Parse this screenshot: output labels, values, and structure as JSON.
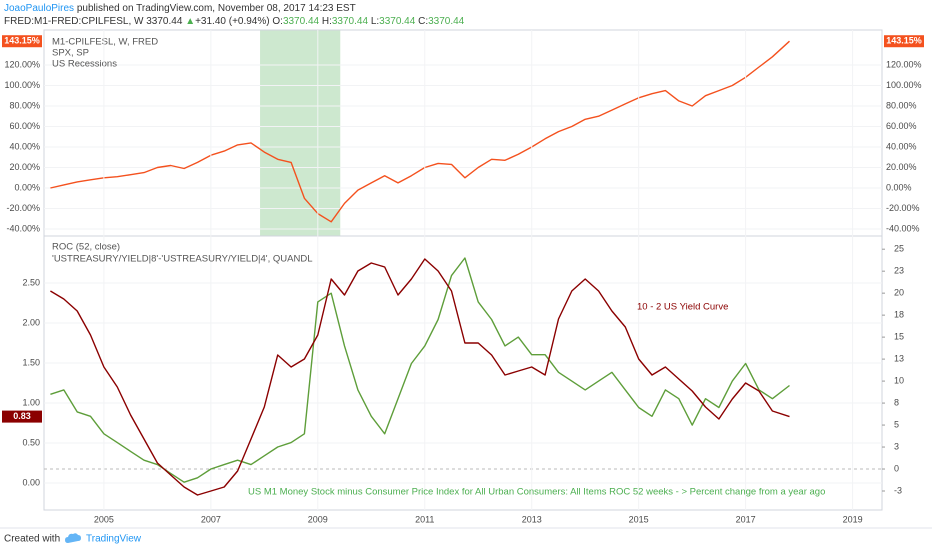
{
  "header": {
    "author": "JoaoPauloPires",
    "published": "published on TradingView.com, November 08, 2017 14:23 EST",
    "symbol": "FRED:M1-FRED:CPILFESL, W",
    "price": "3370.44",
    "arrow": "▲",
    "change": "+31.40 (+0.94%)",
    "ohlc": [
      {
        "label": "O:",
        "value": "3370.44"
      },
      {
        "label": "H:",
        "value": "3370.44"
      },
      {
        "label": "L:",
        "value": "3370.44"
      },
      {
        "label": "C:",
        "value": "3370.44"
      }
    ]
  },
  "chart_data": [
    {
      "type": "line",
      "x": [
        2004,
        2004.25,
        2004.5,
        2004.75,
        2005,
        2005.25,
        2005.5,
        2005.75,
        2006,
        2006.25,
        2006.5,
        2006.75,
        2007,
        2007.25,
        2007.5,
        2007.75,
        2008,
        2008.25,
        2008.5,
        2008.75,
        2009,
        2009.25,
        2009.5,
        2009.75,
        2010,
        2010.25,
        2010.5,
        2010.75,
        2011,
        2011.25,
        2011.5,
        2011.75,
        2012,
        2012.25,
        2012.5,
        2012.75,
        2013,
        2013.25,
        2013.5,
        2013.75,
        2014,
        2014.25,
        2014.5,
        2014.75,
        2015,
        2015.25,
        2015.5,
        2015.75,
        2016,
        2016.25,
        2016.5,
        2016.75,
        2017,
        2017.25,
        2017.5,
        2017.82
      ],
      "xlim": [
        2003.88,
        2019.55
      ],
      "ylim": [
        -46.8,
        154.1
      ],
      "yticks": [
        {
          "value": -40,
          "label": "-40.00%"
        },
        {
          "value": -20,
          "label": "-20.00%"
        },
        {
          "value": 0,
          "label": "0.00%"
        },
        {
          "value": 20,
          "label": "20.00%"
        },
        {
          "value": 40,
          "label": "40.00%"
        },
        {
          "value": 60,
          "label": "60.00%"
        },
        {
          "value": 80,
          "label": "80.00%"
        },
        {
          "value": 100,
          "label": "100.00%"
        },
        {
          "value": 120,
          "label": "120.00%"
        }
      ],
      "yticks_both_sides": true,
      "series": [
        {
          "name": "M1-CPILFESL, W, FRED",
          "color": "#f4511e",
          "axis": "y",
          "values": [
            0,
            3,
            6,
            8,
            10,
            11,
            13,
            15,
            20,
            22,
            19,
            25,
            32,
            36,
            42,
            44,
            35,
            28,
            25,
            -10,
            -25,
            -33,
            -15,
            -2,
            5,
            12,
            5,
            12,
            20,
            24,
            23,
            10,
            20,
            28,
            27,
            33,
            40,
            48,
            55,
            60,
            67,
            70,
            76,
            82,
            88,
            92,
            95,
            85,
            80,
            90,
            95,
            100,
            108,
            118,
            128,
            143.15
          ],
          "last_value_label": "143.15%"
        }
      ],
      "legend_extra": [
        "SPX, SP"
      ],
      "shaded": {
        "name": "US Recessions",
        "xstart": 2007.92,
        "xend": 2009.42,
        "color": "#cde8cf"
      }
    },
    {
      "type": "line",
      "x": [
        2004,
        2004.25,
        2004.5,
        2004.75,
        2005,
        2005.25,
        2005.5,
        2005.75,
        2006,
        2006.25,
        2006.5,
        2006.75,
        2007,
        2007.25,
        2007.5,
        2007.75,
        2008,
        2008.25,
        2008.5,
        2008.75,
        2009,
        2009.25,
        2009.5,
        2009.75,
        2010,
        2010.25,
        2010.5,
        2010.75,
        2011,
        2011.25,
        2011.5,
        2011.75,
        2012,
        2012.25,
        2012.5,
        2012.75,
        2013,
        2013.25,
        2013.5,
        2013.75,
        2014,
        2014.25,
        2014.5,
        2014.75,
        2015,
        2015.25,
        2015.5,
        2015.75,
        2016,
        2016.25,
        2016.5,
        2016.75,
        2017,
        2017.25,
        2017.5,
        2017.82
      ],
      "xlim": [
        2003.88,
        2019.55
      ],
      "xticks": [
        2005,
        2007,
        2009,
        2011,
        2013,
        2015,
        2017,
        2019
      ],
      "ylim": [
        -0.3375,
        3.0875
      ],
      "yticks": [
        {
          "value": 0,
          "label": "0.00"
        },
        {
          "value": 0.5,
          "label": "0.50"
        },
        {
          "value": 1,
          "label": "1.00"
        },
        {
          "value": 1.5,
          "label": "1.50"
        },
        {
          "value": 2,
          "label": "2.00"
        },
        {
          "value": 2.5,
          "label": "2.50"
        }
      ],
      "y2lim": [
        -4.66,
        26.5
      ],
      "y2ticks": [
        {
          "value": -2.5,
          "label": "-3"
        },
        0,
        {
          "value": 2.5,
          "label": "3"
        },
        5,
        {
          "value": 7.5,
          "label": "8"
        },
        10,
        {
          "value": 12.5,
          "label": "13"
        },
        15,
        {
          "value": 17.5,
          "label": "18"
        },
        20,
        {
          "value": 22.5,
          "label": "23"
        },
        25
      ],
      "y2_reference": 0,
      "series": [
        {
          "name": "ROC (52, close)",
          "color": "#5e9e3a",
          "axis": "y2",
          "values": [
            8.5,
            9,
            6.5,
            6,
            4,
            3,
            2,
            1,
            0.5,
            -0.5,
            -1.5,
            -1,
            0,
            0.5,
            1,
            0.5,
            1.5,
            2.5,
            3,
            4,
            19,
            20,
            14,
            9,
            6,
            4,
            8,
            12,
            14,
            17,
            22,
            24,
            19,
            17,
            14,
            15,
            13,
            13,
            11,
            10,
            9,
            10,
            11,
            9,
            7,
            6,
            9,
            8,
            5,
            8,
            7,
            10,
            12,
            9,
            8,
            9.5
          ]
        },
        {
          "name": "'USTREASURY/YIELD|8'-'USTREASURY/YIELD|4', QUANDL",
          "color": "#8b0000",
          "axis": "y",
          "values": [
            2.4,
            2.3,
            2.15,
            1.85,
            1.45,
            1.2,
            0.85,
            0.55,
            0.25,
            0.1,
            -0.05,
            -0.15,
            -0.1,
            -0.05,
            0.15,
            0.55,
            0.95,
            1.6,
            1.45,
            1.55,
            1.85,
            2.55,
            2.35,
            2.65,
            2.75,
            2.7,
            2.35,
            2.55,
            2.8,
            2.65,
            2.4,
            1.75,
            1.75,
            1.6,
            1.35,
            1.4,
            1.45,
            1.35,
            2.05,
            2.4,
            2.55,
            2.4,
            2.15,
            1.95,
            1.55,
            1.35,
            1.45,
            1.3,
            1.15,
            0.95,
            0.8,
            1.05,
            1.25,
            1.15,
            0.9,
            0.83
          ],
          "last_value_label": "0.83"
        }
      ],
      "annotations": [
        {
          "text": "10 - 2 US Yield Curve",
          "color": "#8b0000"
        },
        {
          "text": "US M1 Money Stock minus Consumer Price Index for All Urban Consumers: All Items ROC 52 weeks - > Percent change from a year ago",
          "color": "#4caf50"
        }
      ]
    }
  ],
  "footer": {
    "created": "Created with",
    "brand": "TradingView"
  }
}
